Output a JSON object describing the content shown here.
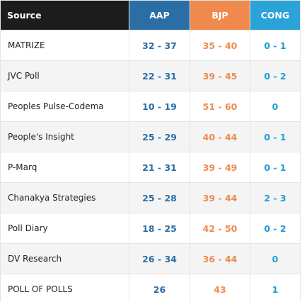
{
  "table": {
    "header": [
      "Source",
      "AAP",
      "BJP",
      "CONG"
    ],
    "rows": [
      [
        "MATRIZE",
        "32 - 37",
        "35 - 40",
        "0 - 1"
      ],
      [
        "JVC Poll",
        "22 - 31",
        "39 - 45",
        "0 - 2"
      ],
      [
        "Peoples Pulse-Codema",
        "10 - 19",
        "51 - 60",
        "0"
      ],
      [
        "People's Insight",
        "25 - 29",
        "40 - 44",
        "0 - 1"
      ],
      [
        "P-Marq",
        "21 - 31",
        "39 - 49",
        "0 - 1"
      ],
      [
        "Chanakya Strategies",
        "25 - 28",
        "39 - 44",
        "2 - 3"
      ],
      [
        "Poll Diary",
        "18 - 25",
        "42 - 50",
        "0 - 2"
      ],
      [
        "DV Research",
        "26 - 34",
        "36 - 44",
        "0"
      ],
      [
        "POLL OF POLLS",
        "26",
        "43",
        "1"
      ]
    ]
  }
}
